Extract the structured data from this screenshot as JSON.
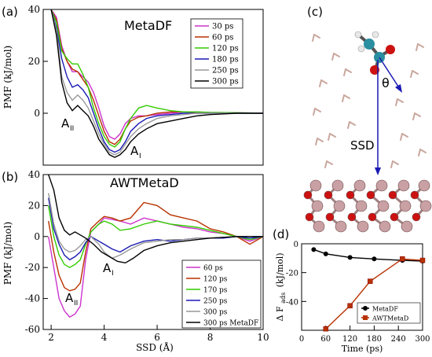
{
  "chart_data": [
    {
      "type": "line",
      "panel_label": "(a)",
      "title": "MetaDF",
      "xlabel": "",
      "ylabel": "PMF (kJ/mol)",
      "xlim": [
        1.7,
        10
      ],
      "ylim": [
        -20,
        40
      ],
      "yticks": [
        0,
        20,
        40
      ],
      "annotations": [
        "A",
        "A"
      ],
      "annotation_subs": [
        "II",
        "I"
      ],
      "legend_position": "top-right",
      "series": [
        {
          "name": "30 ps",
          "color": "#cc33cc",
          "x": [
            2.0,
            2.2,
            2.4,
            2.6,
            2.8,
            3.0,
            3.2,
            3.4,
            3.6,
            3.8,
            4.0,
            4.2,
            4.4,
            4.6,
            4.8,
            5.0,
            5.3,
            5.6,
            6.0,
            6.5,
            7.0,
            7.5,
            8.0,
            9.0,
            10.0
          ],
          "y": [
            40,
            37,
            26,
            20,
            16,
            16,
            14,
            12,
            8,
            2,
            -5,
            -9,
            -10,
            -8,
            -4,
            -2,
            -1,
            -1,
            -0.5,
            0,
            0.5,
            0.5,
            0.3,
            0.2,
            0
          ]
        },
        {
          "name": "60 ps",
          "color": "#b83200",
          "x": [
            2.0,
            2.2,
            2.4,
            2.6,
            2.8,
            3.0,
            3.2,
            3.4,
            3.6,
            3.8,
            4.0,
            4.2,
            4.4,
            4.6,
            4.8,
            5.0,
            5.3,
            5.6,
            6.0,
            6.5,
            7.0,
            7.5,
            8.0,
            9.0,
            10.0
          ],
          "y": [
            40,
            36,
            25,
            20,
            17,
            16,
            13,
            10,
            5,
            -1,
            -7,
            -11,
            -12,
            -10,
            -6,
            -3,
            -1.5,
            -1,
            0,
            0.5,
            0.5,
            0.3,
            0.2,
            0.1,
            0
          ]
        },
        {
          "name": "120 ps",
          "color": "#33cc00",
          "x": [
            2.0,
            2.2,
            2.4,
            2.6,
            2.8,
            3.0,
            3.2,
            3.4,
            3.6,
            3.8,
            4.0,
            4.2,
            4.4,
            4.6,
            4.8,
            5.0,
            5.3,
            5.6,
            6.0,
            6.5,
            7.0,
            7.5,
            8.0,
            9.0,
            10.0
          ],
          "y": [
            40,
            35,
            24,
            21,
            19,
            19,
            15,
            10,
            2,
            -4,
            -9,
            -12,
            -13,
            -11,
            -6,
            -2,
            2,
            3,
            2,
            1,
            0.5,
            0.5,
            0.3,
            0.2,
            0
          ]
        },
        {
          "name": "180 ps",
          "color": "#1a1ab3",
          "x": [
            2.0,
            2.2,
            2.4,
            2.6,
            2.8,
            3.0,
            3.2,
            3.4,
            3.6,
            3.8,
            4.0,
            4.2,
            4.4,
            4.6,
            4.8,
            5.0,
            5.3,
            5.6,
            6.0,
            6.5,
            7.0,
            7.5,
            8.0,
            9.0,
            10.0
          ],
          "y": [
            40,
            33,
            21,
            14,
            10,
            11,
            9,
            6,
            0,
            -6,
            -11,
            -14,
            -15,
            -14,
            -11,
            -7,
            -4,
            -2,
            -1,
            -0.5,
            0,
            0,
            0,
            0,
            0
          ]
        },
        {
          "name": "250 ps",
          "color": "#999999",
          "x": [
            2.0,
            2.2,
            2.4,
            2.6,
            2.8,
            3.0,
            3.2,
            3.4,
            3.6,
            3.8,
            4.0,
            4.2,
            4.4,
            4.6,
            4.8,
            5.0,
            5.3,
            5.6,
            6.0,
            6.5,
            7.0,
            7.5,
            8.0,
            9.0,
            10.0
          ],
          "y": [
            40,
            32,
            14,
            8,
            5,
            7,
            5,
            2,
            -3,
            -8,
            -12,
            -15,
            -16,
            -15,
            -12,
            -9,
            -6,
            -4,
            -2,
            -1,
            -0.5,
            0,
            0,
            0,
            0
          ]
        },
        {
          "name": "300 ps",
          "color": "#000000",
          "x": [
            2.0,
            2.2,
            2.4,
            2.6,
            2.8,
            3.0,
            3.2,
            3.4,
            3.6,
            3.8,
            4.0,
            4.2,
            4.4,
            4.6,
            4.8,
            5.0,
            5.3,
            5.6,
            6.0,
            6.5,
            7.0,
            7.5,
            8.0,
            9.0,
            10.0
          ],
          "y": [
            40,
            30,
            12,
            4,
            1,
            3,
            1,
            -1,
            -5,
            -10,
            -13,
            -16,
            -17,
            -16,
            -14,
            -11,
            -8,
            -6,
            -4,
            -3,
            -2,
            -1,
            -0.5,
            0,
            0
          ]
        }
      ]
    },
    {
      "type": "line",
      "panel_label": "(b)",
      "title": "AWTMetaD",
      "xlabel": "SSD (Å)",
      "ylabel": "PMF (kJ/mol)",
      "xlim": [
        1.7,
        10
      ],
      "ylim": [
        -60,
        40
      ],
      "xticks": [
        2,
        4,
        6,
        8,
        10
      ],
      "yticks": [
        -60,
        -40,
        -20,
        0,
        20,
        40
      ],
      "annotations": [
        "A",
        "A"
      ],
      "annotation_subs": [
        "II",
        "I"
      ],
      "legend_position": "bottom-right",
      "series": [
        {
          "name": "60 ps",
          "color": "#cc33cc",
          "x": [
            1.9,
            2.1,
            2.3,
            2.5,
            2.7,
            2.9,
            3.1,
            3.3,
            3.5,
            3.8,
            4.0,
            4.3,
            4.6,
            5.0,
            5.5,
            6.0,
            6.5,
            7.0,
            7.5,
            8.0,
            8.5,
            9.0,
            9.5,
            10.0
          ],
          "y": [
            0,
            -20,
            -40,
            -48,
            -52,
            -50,
            -45,
            -15,
            3,
            8,
            12,
            11,
            10,
            8,
            12,
            10,
            8,
            6,
            5,
            3,
            2,
            0,
            -3,
            0
          ]
        },
        {
          "name": "120 ps",
          "color": "#b83200",
          "x": [
            1.9,
            2.1,
            2.3,
            2.5,
            2.7,
            2.9,
            3.1,
            3.3,
            3.5,
            3.8,
            4.0,
            4.3,
            4.6,
            5.0,
            5.5,
            6.0,
            6.5,
            7.0,
            7.5,
            8.0,
            8.5,
            9.0,
            9.5,
            10.0
          ],
          "y": [
            10,
            -10,
            -25,
            -33,
            -35,
            -34,
            -30,
            -10,
            5,
            10,
            13,
            12,
            10,
            12,
            22,
            20,
            14,
            12,
            10,
            5,
            3,
            0,
            -5,
            0
          ]
        },
        {
          "name": "170 ps",
          "color": "#33cc00",
          "x": [
            1.9,
            2.1,
            2.3,
            2.5,
            2.7,
            2.9,
            3.1,
            3.3,
            3.5,
            3.8,
            4.0,
            4.3,
            4.6,
            5.0,
            5.5,
            6.0,
            6.5,
            7.0,
            7.5,
            8.0,
            8.5,
            9.0,
            9.5,
            10.0
          ],
          "y": [
            20,
            0,
            -12,
            -18,
            -20,
            -18,
            -15,
            -5,
            3,
            8,
            10,
            8,
            4,
            5,
            8,
            10,
            8,
            7,
            6,
            4,
            2,
            0,
            -2,
            0
          ]
        },
        {
          "name": "250 ps",
          "color": "#1a1ab3",
          "x": [
            1.9,
            2.1,
            2.3,
            2.5,
            2.7,
            2.9,
            3.1,
            3.3,
            3.5,
            3.8,
            4.0,
            4.3,
            4.6,
            5.0,
            5.5,
            6.0,
            6.5,
            7.0,
            7.5,
            8.0,
            8.5,
            9.0,
            9.5,
            10.0
          ],
          "y": [
            25,
            5,
            -5,
            -12,
            -15,
            -13,
            -10,
            -4,
            0,
            -3,
            -5,
            -8,
            -10,
            -6,
            -3,
            -2,
            -3,
            -2,
            -1,
            -1,
            -1,
            0,
            -1,
            0
          ]
        },
        {
          "name": "300 ps",
          "color": "#999999",
          "x": [
            1.9,
            2.1,
            2.3,
            2.5,
            2.7,
            2.9,
            3.1,
            3.3,
            3.5,
            3.8,
            4.0,
            4.3,
            4.6,
            5.0,
            5.5,
            6.0,
            6.5,
            7.0,
            7.5,
            8.0,
            8.5,
            9.0,
            9.5,
            10.0
          ],
          "y": [
            28,
            8,
            -3,
            -8,
            -10,
            -9,
            -6,
            -2,
            0,
            -5,
            -10,
            -14,
            -12,
            -8,
            -4,
            -3,
            -2,
            -2,
            -1,
            -1,
            -0.5,
            0,
            0,
            0
          ]
        },
        {
          "name": "300 ps MetaDF",
          "color": "#000000",
          "x": [
            1.9,
            2.1,
            2.3,
            2.5,
            2.7,
            2.9,
            3.1,
            3.3,
            3.6,
            3.9,
            4.2,
            4.5,
            4.8,
            5.1,
            5.5,
            6.0,
            6.5,
            7.0,
            7.5,
            8.0,
            9.0,
            10.0
          ],
          "y": [
            40,
            30,
            12,
            4,
            1,
            3,
            1,
            -1,
            -5,
            -10,
            -13,
            -16,
            -17,
            -14,
            -9,
            -6,
            -4,
            -3,
            -2,
            -1,
            0,
            0
          ]
        }
      ]
    },
    {
      "type": "line",
      "panel_label": "(d)",
      "xlabel": "Time (ps)",
      "ylabel": "Δ F",
      "ylabel_sub": "ads",
      "ylabel_unit": "(kJ/mol)",
      "xlim": [
        0,
        300
      ],
      "ylim": [
        -60,
        0
      ],
      "xticks": [
        0,
        60,
        120,
        180,
        240,
        300
      ],
      "yticks": [
        -40,
        -20,
        0
      ],
      "legend_position": "bottom-right",
      "series": [
        {
          "name": "MetaDF",
          "color": "#000000",
          "marker": "circle",
          "x": [
            30,
            60,
            120,
            180,
            250,
            300
          ],
          "y": [
            -4,
            -7,
            -9.5,
            -10.5,
            -11.5,
            -12
          ]
        },
        {
          "name": "AWTMetaD",
          "color": "#b83200",
          "marker": "square",
          "x": [
            60,
            120,
            170,
            250,
            300
          ],
          "y": [
            -59,
            -43,
            -26,
            -10.5,
            -11.5
          ]
        }
      ]
    }
  ],
  "illustration": {
    "panel_label": "(c)",
    "theta_label": "θ",
    "ssd_label": "SSD"
  }
}
